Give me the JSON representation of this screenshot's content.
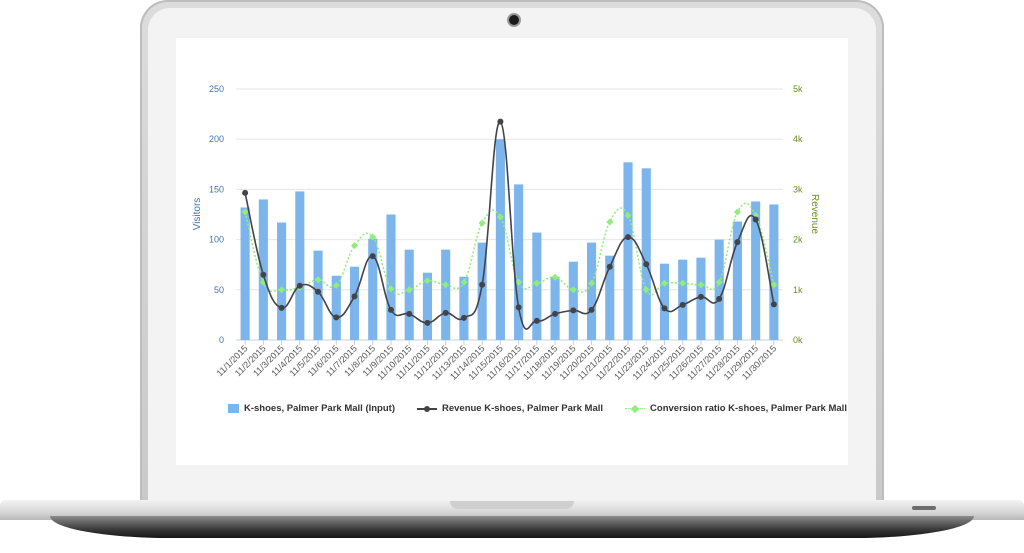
{
  "chart_data": {
    "type": "bar",
    "categories": [
      "11/1/2015",
      "11/2/2015",
      "11/3/2015",
      "11/4/2015",
      "11/5/2015",
      "11/6/2015",
      "11/7/2015",
      "11/8/2015",
      "11/9/2015",
      "11/10/2015",
      "11/11/2015",
      "11/12/2015",
      "11/13/2015",
      "11/14/2015",
      "11/15/2015",
      "11/16/2015",
      "11/17/2015",
      "11/18/2015",
      "11/19/2015",
      "11/20/2015",
      "11/21/2015",
      "11/22/2015",
      "11/23/2015",
      "11/24/2015",
      "11/25/2015",
      "11/26/2015",
      "11/27/2015",
      "11/28/2015",
      "11/29/2015",
      "11/30/2015"
    ],
    "y_left": {
      "label": "Visitors",
      "ticks": [
        "0",
        "50",
        "100",
        "150",
        "200",
        "250"
      ],
      "min": 0,
      "max": 250
    },
    "y_right": {
      "label": "Revenue",
      "ticks": [
        "0k",
        "1k",
        "2k",
        "3k",
        "4k",
        "5k"
      ],
      "min": 0,
      "max": 5000
    },
    "series": [
      {
        "name": "K-shoes, Palmer Park Mall (Input)",
        "type": "bar",
        "axis": "left",
        "color": "#7cb5ec",
        "values": [
          132,
          140,
          117,
          148,
          89,
          64,
          73,
          101,
          125,
          90,
          67,
          90,
          63,
          97,
          200,
          155,
          107,
          63,
          78,
          97,
          84,
          177,
          171,
          76,
          80,
          82,
          100,
          118,
          138,
          135
        ]
      },
      {
        "name": "Revenue K-shoes, Palmer Park Mall",
        "type": "line",
        "axis": "right",
        "color": "#434348",
        "values": [
          2930,
          1300,
          640,
          1080,
          960,
          450,
          870,
          1670,
          600,
          520,
          340,
          540,
          440,
          1100,
          4350,
          650,
          380,
          520,
          590,
          600,
          1460,
          2050,
          1510,
          630,
          700,
          860,
          820,
          1950,
          2400,
          710
        ]
      },
      {
        "name": "Conversion ratio K-shoes, Palmer Park Mall",
        "type": "line",
        "axis": "right",
        "color": "#90ed7d",
        "values": [
          2550,
          1150,
          1000,
          1050,
          1200,
          1090,
          1880,
          2050,
          1020,
          1000,
          1180,
          1100,
          1150,
          2330,
          2450,
          1150,
          1130,
          1250,
          1000,
          1130,
          2350,
          2480,
          1000,
          1130,
          1130,
          1100,
          1150,
          2550,
          2480,
          1100
        ]
      }
    ],
    "legend": "bottom"
  }
}
